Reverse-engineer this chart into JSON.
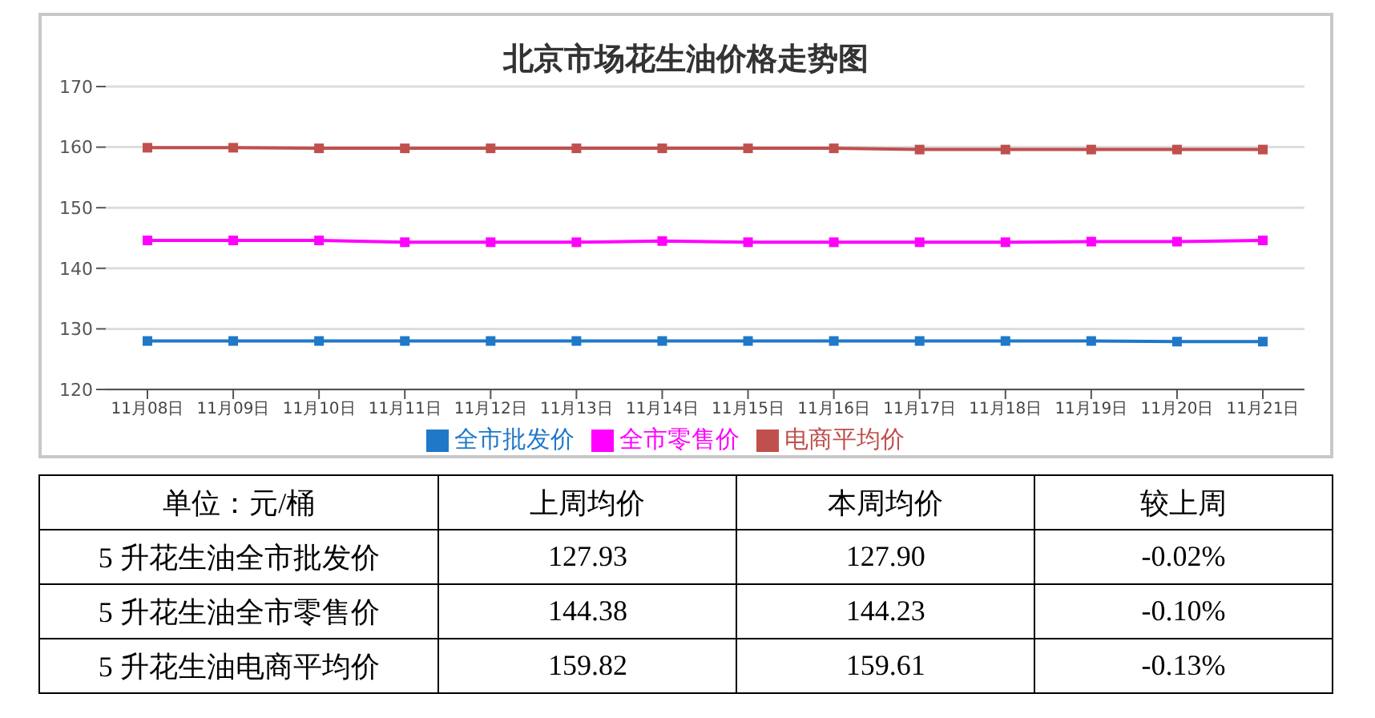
{
  "chart_data": {
    "type": "line",
    "title": "北京市场花生油价格走势图",
    "categories": [
      "11月08日",
      "11月09日",
      "11月10日",
      "11月11日",
      "11月12日",
      "11月13日",
      "11月14日",
      "11月15日",
      "11月16日",
      "11月17日",
      "11月18日",
      "11月19日",
      "11月20日",
      "11月21日"
    ],
    "series": [
      {
        "name": "全市批发价",
        "color": "#1f78c8",
        "values": [
          128,
          128,
          128,
          128,
          128,
          128,
          128,
          128,
          128,
          128,
          128,
          128,
          127.9,
          127.9
        ]
      },
      {
        "name": "全市零售价",
        "color": "#ff00ff",
        "values": [
          144.6,
          144.6,
          144.6,
          144.3,
          144.3,
          144.3,
          144.5,
          144.3,
          144.3,
          144.3,
          144.3,
          144.4,
          144.4,
          144.6
        ]
      },
      {
        "name": "电商平均价",
        "color": "#c0504d",
        "values": [
          159.9,
          159.9,
          159.8,
          159.8,
          159.8,
          159.8,
          159.8,
          159.8,
          159.8,
          159.6,
          159.6,
          159.6,
          159.6,
          159.6
        ]
      }
    ],
    "ylim": [
      120,
      170
    ],
    "yticks": [
      120,
      130,
      140,
      150,
      160,
      170
    ],
    "grid": "y",
    "legend": "bottom",
    "marker": "square",
    "annotations": [
      "单位：元/桶",
      "上周均价",
      "本周均价",
      "较上周",
      "5 升花生油全市批发价",
      "127.93",
      "127.90",
      "-0.02%",
      "5 升花生油全市零售价",
      "144.38",
      "144.23",
      "-0.10%",
      "5 升花生油电商平均价",
      "159.82",
      "159.61",
      "-0.13%"
    ]
  }
}
